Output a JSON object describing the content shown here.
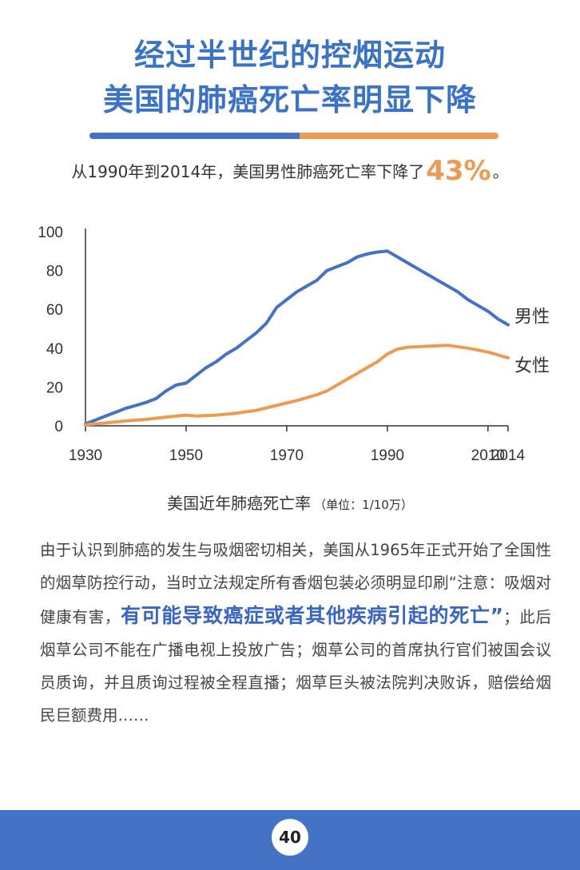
{
  "header": {
    "title_line1": "经过半世纪的控烟运动",
    "title_line2": "美国的肺癌死亡率明显下降"
  },
  "subtitle": {
    "prefix": "从1990年到2014年，美国男性肺癌死亡率下降了",
    "highlight": "43%",
    "suffix": "。"
  },
  "colors": {
    "male": "#4472c4",
    "female": "#ed9a55",
    "title": "#3a72c4",
    "footer": "#4472c4"
  },
  "chart_data": {
    "type": "line",
    "title": "美国近年肺癌死亡率",
    "unit": "（单位：1/10万）",
    "xlim": [
      1930,
      2014
    ],
    "ylim": [
      0,
      100
    ],
    "x_ticks": [
      1930,
      1950,
      1970,
      1990,
      2010,
      2014
    ],
    "y_ticks": [
      0,
      20,
      40,
      60,
      80,
      100
    ],
    "grid": false,
    "series": [
      {
        "name": "男性",
        "color": "#4472c4",
        "points": [
          [
            1930,
            1
          ],
          [
            1932,
            3
          ],
          [
            1934,
            5
          ],
          [
            1936,
            7
          ],
          [
            1938,
            9
          ],
          [
            1940,
            10.5
          ],
          [
            1942,
            12
          ],
          [
            1944,
            14
          ],
          [
            1946,
            18
          ],
          [
            1948,
            21
          ],
          [
            1950,
            22
          ],
          [
            1952,
            26
          ],
          [
            1954,
            30
          ],
          [
            1956,
            33
          ],
          [
            1958,
            37
          ],
          [
            1960,
            40
          ],
          [
            1962,
            44
          ],
          [
            1964,
            48
          ],
          [
            1966,
            53
          ],
          [
            1968,
            61
          ],
          [
            1970,
            65
          ],
          [
            1972,
            69
          ],
          [
            1974,
            72
          ],
          [
            1976,
            75
          ],
          [
            1978,
            80
          ],
          [
            1980,
            82
          ],
          [
            1982,
            84
          ],
          [
            1984,
            87
          ],
          [
            1986,
            88.5
          ],
          [
            1988,
            89.5
          ],
          [
            1990,
            90
          ],
          [
            1992,
            87
          ],
          [
            1994,
            84
          ],
          [
            1996,
            81
          ],
          [
            1998,
            78
          ],
          [
            2000,
            75
          ],
          [
            2002,
            72
          ],
          [
            2004,
            69
          ],
          [
            2006,
            65
          ],
          [
            2008,
            62
          ],
          [
            2010,
            59
          ],
          [
            2012,
            55
          ],
          [
            2014,
            52
          ]
        ]
      },
      {
        "name": "女性",
        "color": "#ed9a55",
        "points": [
          [
            1930,
            0.5
          ],
          [
            1934,
            1.5
          ],
          [
            1938,
            2.5
          ],
          [
            1942,
            3.3
          ],
          [
            1946,
            4.5
          ],
          [
            1950,
            5.5
          ],
          [
            1952,
            5
          ],
          [
            1956,
            5.5
          ],
          [
            1960,
            6.5
          ],
          [
            1964,
            8
          ],
          [
            1968,
            10.5
          ],
          [
            1972,
            13
          ],
          [
            1976,
            16
          ],
          [
            1978,
            18
          ],
          [
            1980,
            21
          ],
          [
            1984,
            27
          ],
          [
            1988,
            33
          ],
          [
            1990,
            37
          ],
          [
            1992,
            39.5
          ],
          [
            1994,
            40.5
          ],
          [
            1998,
            41
          ],
          [
            2002,
            41.5
          ],
          [
            2006,
            40
          ],
          [
            2010,
            38
          ],
          [
            2014,
            35
          ]
        ]
      }
    ]
  },
  "body": {
    "text1": "由于认识到肺癌的发生与吸烟密切相关，美国从1965年正式开始了全国性的烟草防控行动，当时立法规定所有香烟包装必须明显印刷“注意：吸烟对健康有害，",
    "highlight": "有可能导致癌症或者其他疾病引起的死亡”",
    "text2": "；此后烟草公司不能在广播电视上投放广告；烟草公司的首席执行官们被国会议员质询，并且质询过程被全程直播；烟草巨头被法院判决败诉，赔偿给烟民巨额费用……"
  },
  "footer": {
    "page_number": "40"
  }
}
